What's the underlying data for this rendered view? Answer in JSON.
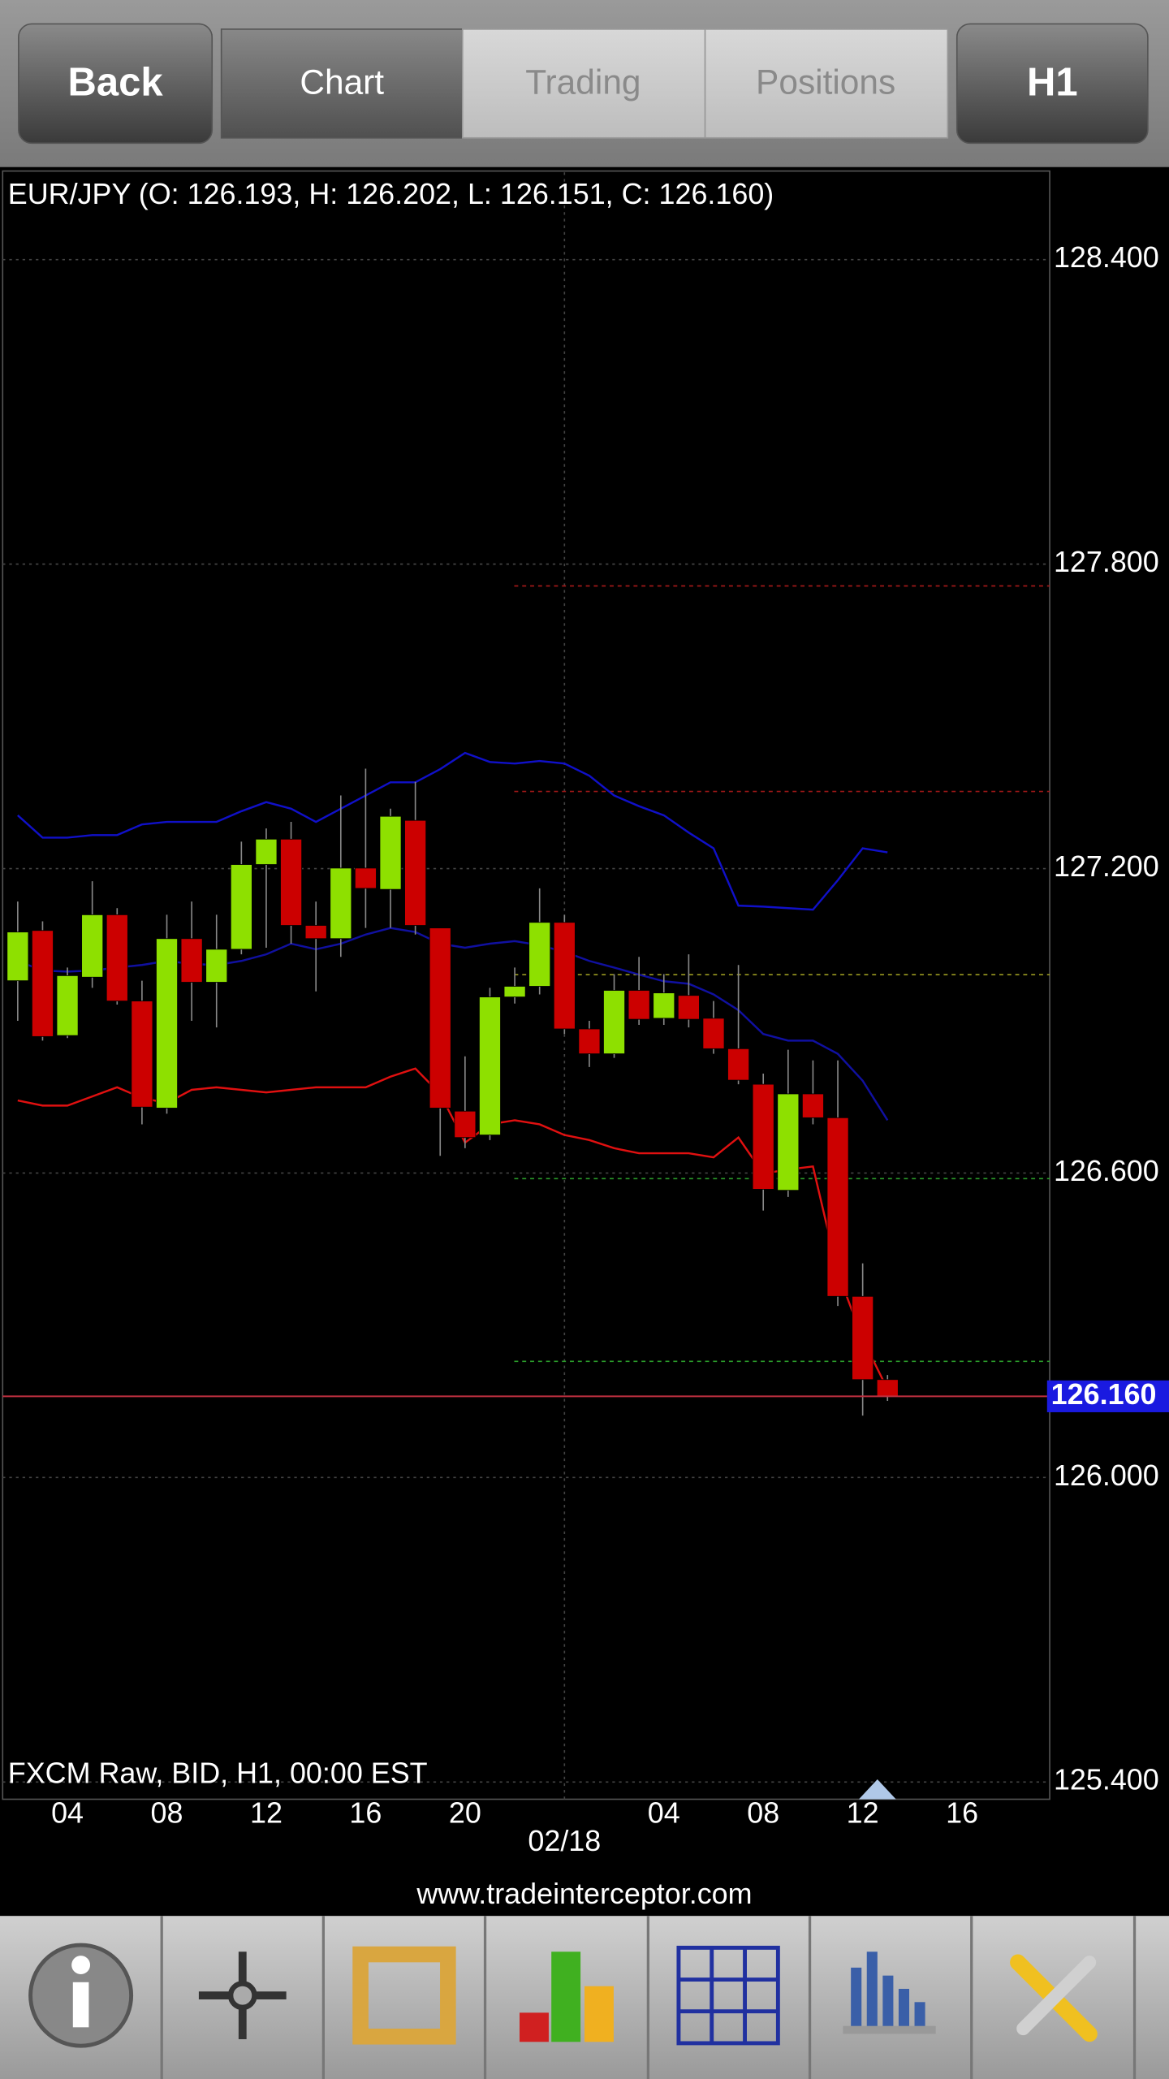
{
  "toolbar": {
    "back": "Back",
    "tabs": [
      "Chart",
      "Trading",
      "Positions"
    ],
    "timeframe": "H1"
  },
  "chart_data": {
    "type": "candlestick",
    "title": "EUR/JPY (O: 126.193, H: 126.202, L: 126.151, C: 126.160)",
    "subtitle": "FXCM Raw, BID, H1, 00:00 EST",
    "categories": [
      null,
      null,
      "04",
      null,
      null,
      null,
      "08",
      null,
      null,
      null,
      "12",
      null,
      null,
      null,
      "16",
      null,
      null,
      null,
      "20",
      null,
      null,
      null,
      "02/18",
      null,
      null,
      null,
      "04",
      null,
      null,
      null,
      "08",
      null,
      null,
      null,
      "12",
      null,
      null,
      null,
      "16",
      null,
      null,
      null
    ],
    "open": [
      126.979,
      127.078,
      126.871,
      126.986,
      127.109,
      126.939,
      126.728,
      127.062,
      126.976,
      127.041,
      127.208,
      127.258,
      127.088,
      127.062,
      127.201,
      127.159,
      127.295,
      127.083,
      126.722,
      126.675,
      126.947,
      126.968,
      127.094,
      126.884,
      126.835,
      126.96,
      126.905,
      126.95,
      126.905,
      126.845,
      126.775,
      126.566,
      126.756,
      126.709,
      126.357,
      126.193,
      null,
      null,
      null,
      null,
      null,
      null
    ],
    "high": [
      127.135,
      127.096,
      127.005,
      127.175,
      127.122,
      126.979,
      127.109,
      127.135,
      127.109,
      127.253,
      127.279,
      127.292,
      127.135,
      127.344,
      127.397,
      127.318,
      127.371,
      127.083,
      126.83,
      126.965,
      127.005,
      127.161,
      127.109,
      126.9,
      126.992,
      127.026,
      126.992,
      127.031,
      126.939,
      127.01,
      126.796,
      126.843,
      126.822,
      126.822,
      126.422,
      126.202,
      null,
      null,
      null,
      null,
      null,
      null
    ],
    "low": [
      126.9,
      126.861,
      126.866,
      126.965,
      126.932,
      126.696,
      126.717,
      126.9,
      126.887,
      127.031,
      127.044,
      127.052,
      126.958,
      127.026,
      127.083,
      127.083,
      127.07,
      126.634,
      126.649,
      126.665,
      126.934,
      126.952,
      126.874,
      126.809,
      126.827,
      126.892,
      126.892,
      126.887,
      126.835,
      126.775,
      126.526,
      126.553,
      126.696,
      126.338,
      126.122,
      126.151,
      null,
      null,
      null,
      null,
      null,
      null
    ],
    "close": [
      127.075,
      126.869,
      126.989,
      127.109,
      126.939,
      126.73,
      127.062,
      126.976,
      127.041,
      127.208,
      127.258,
      127.088,
      127.062,
      127.201,
      127.161,
      127.303,
      127.088,
      126.728,
      126.67,
      126.947,
      126.968,
      127.094,
      126.884,
      126.835,
      126.96,
      126.903,
      126.955,
      126.903,
      126.845,
      126.783,
      126.568,
      126.756,
      126.709,
      126.357,
      126.193,
      126.16,
      null,
      null,
      null,
      null,
      null,
      null
    ],
    "up_color": "#8ee000",
    "down_color": "#cc0000",
    "overlays": [
      {
        "color": "#1010c8",
        "values": [
          127.305,
          127.261,
          127.261,
          127.266,
          127.266,
          127.287,
          127.292,
          127.292,
          127.292,
          127.313,
          127.331,
          127.318,
          127.292,
          127.318,
          127.344,
          127.37,
          127.37,
          127.396,
          127.428,
          127.41,
          127.407,
          127.412,
          127.407,
          127.383,
          127.344,
          127.323,
          127.305,
          127.271,
          127.24,
          127.127,
          127.125,
          127.122,
          127.119,
          127.177,
          127.24,
          127.232,
          null,
          null,
          null,
          null,
          null,
          null
        ]
      },
      {
        "color": "#1010a0",
        "values": [
          127.018,
          126.999,
          126.997,
          126.999,
          127.005,
          127.01,
          127.018,
          127.012,
          127.01,
          127.018,
          127.031,
          127.052,
          127.041,
          127.052,
          127.07,
          127.083,
          127.075,
          127.052,
          127.044,
          127.052,
          127.057,
          127.049,
          127.036,
          127.018,
          127.005,
          126.991,
          126.978,
          126.973,
          126.952,
          126.921,
          126.874,
          126.861,
          126.861,
          126.835,
          126.782,
          126.704,
          null,
          null,
          null,
          null,
          null,
          null
        ]
      },
      {
        "color": "#e01010",
        "values": [
          126.743,
          126.733,
          126.733,
          126.751,
          126.769,
          126.748,
          126.738,
          126.764,
          126.769,
          126.764,
          126.759,
          126.764,
          126.769,
          126.769,
          126.769,
          126.79,
          126.806,
          126.756,
          126.66,
          126.696,
          126.704,
          126.696,
          126.675,
          126.665,
          126.649,
          126.639,
          126.639,
          126.639,
          126.631,
          126.67,
          126.599,
          126.607,
          126.613,
          126.404,
          126.273,
          126.174,
          null,
          null,
          null,
          null,
          null,
          null
        ]
      }
    ],
    "levels": [
      {
        "value": 127.757,
        "color": "#a01818"
      },
      {
        "value": 127.352,
        "color": "#a01818"
      },
      {
        "value": 126.991,
        "color": "#9a9a20"
      },
      {
        "value": 126.589,
        "color": "#2a9a2a"
      },
      {
        "value": 126.229,
        "color": "#2a9a2a"
      }
    ],
    "current_price": {
      "value": 126.16,
      "label": "126.160"
    },
    "ylim": [
      125.366,
      128.572
    ],
    "yticks": [
      {
        "value": 125.4,
        "label": "125.400"
      },
      {
        "value": 126.0,
        "label": "126.000"
      },
      {
        "value": 126.6,
        "label": "126.600"
      },
      {
        "value": 127.2,
        "label": "127.200"
      },
      {
        "value": 127.8,
        "label": "127.800"
      },
      {
        "value": 128.4,
        "label": "128.400"
      }
    ],
    "grid": true
  },
  "footer": {
    "url": "www.tradeinterceptor.com"
  }
}
